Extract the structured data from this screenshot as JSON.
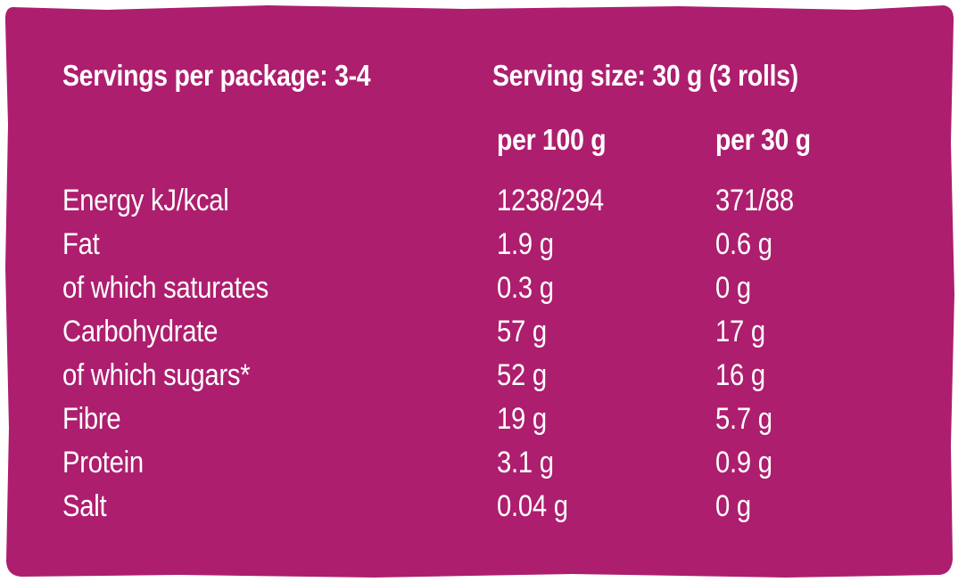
{
  "colors": {
    "panel": "#AD1E6E",
    "text": "#FFFFFF"
  },
  "header": {
    "servings_per_package": "Servings per package: 3-4",
    "serving_size": "Serving size: 30 g (3 rolls)"
  },
  "columns": {
    "per_100g": "per 100 g",
    "per_serving": "per 30 g"
  },
  "rows": [
    {
      "label": "Energy kJ/kcal",
      "per_100g": "1238/294",
      "per_serving": "371/88"
    },
    {
      "label": "Fat",
      "per_100g": "1.9 g",
      "per_serving": "0.6 g"
    },
    {
      "label": "of which saturates",
      "per_100g": "0.3 g",
      "per_serving": "0 g"
    },
    {
      "label": "Carbohydrate",
      "per_100g": "57 g",
      "per_serving": "17 g"
    },
    {
      "label": "of which sugars*",
      "per_100g": "52 g",
      "per_serving": "16 g"
    },
    {
      "label": "Fibre",
      "per_100g": "19 g",
      "per_serving": "5.7 g"
    },
    {
      "label": "Protein",
      "per_100g": "3.1 g",
      "per_serving": "0.9 g"
    },
    {
      "label": "Salt",
      "per_100g": "0.04 g",
      "per_serving": "0 g"
    }
  ]
}
